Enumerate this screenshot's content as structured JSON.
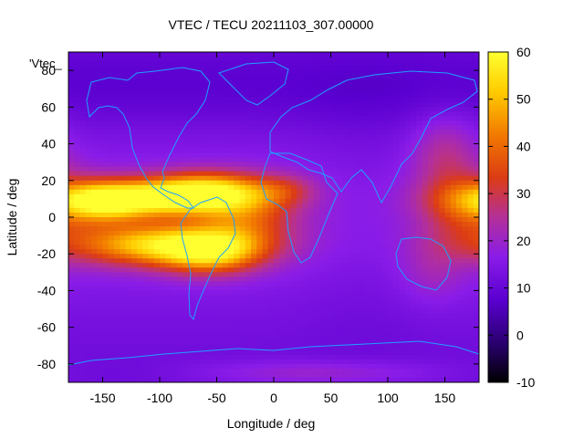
{
  "title": "VTEC / TECU 20211103_307.00000",
  "legend_label": "'Vtec_",
  "chart_data": {
    "type": "heatmap",
    "title": "VTEC / TECU 20211103_307.00000",
    "xlabel": "Longitude / deg",
    "ylabel": "Latitude / deg",
    "xlim": [
      -180,
      180
    ],
    "ylim": [
      -90,
      90
    ],
    "x_ticks": [
      -150,
      -100,
      -50,
      0,
      50,
      100,
      150
    ],
    "y_ticks": [
      -80,
      -60,
      -40,
      -20,
      0,
      20,
      40,
      60,
      80
    ],
    "colorbar": {
      "range": [
        -10,
        60
      ],
      "ticks": [
        -10,
        0,
        10,
        20,
        30,
        40,
        50,
        60
      ],
      "colormap": [
        "#000000",
        "#2a0070",
        "#5a00d0",
        "#8a1ce8",
        "#b43098",
        "#dc3c14",
        "#f27a00",
        "#ffcc00",
        "#ffff30"
      ]
    },
    "vtec_peak_tecu": 55,
    "grid": false,
    "coastline_color": "#1ea0ff",
    "legend_position": "top-left"
  }
}
